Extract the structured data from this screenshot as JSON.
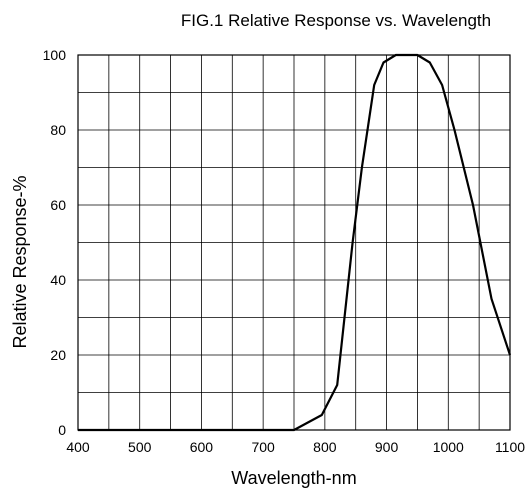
{
  "chart_data": {
    "type": "line",
    "title": "FIG.1 Relative Response vs. Wavelength",
    "xlabel": "Wavelength-nm",
    "ylabel": "Relative Response-%",
    "xlim": [
      400,
      1100
    ],
    "ylim": [
      0,
      100
    ],
    "grid": true,
    "x_ticks": [
      400,
      500,
      600,
      700,
      800,
      900,
      1000,
      1100
    ],
    "y_ticks": [
      0,
      20,
      40,
      60,
      80,
      100
    ],
    "x_grid_step": 50,
    "y_grid_step": 10,
    "series": [
      {
        "color": "#000000",
        "x": [
          400,
          750,
          795,
          820,
          845,
          860,
          880,
          895,
          915,
          930,
          950,
          970,
          990,
          1010,
          1040,
          1070,
          1100
        ],
        "y": [
          0,
          0,
          4,
          12,
          50,
          70,
          92,
          98,
          100,
          100,
          100,
          98,
          92,
          80,
          60,
          35,
          20
        ]
      }
    ]
  }
}
